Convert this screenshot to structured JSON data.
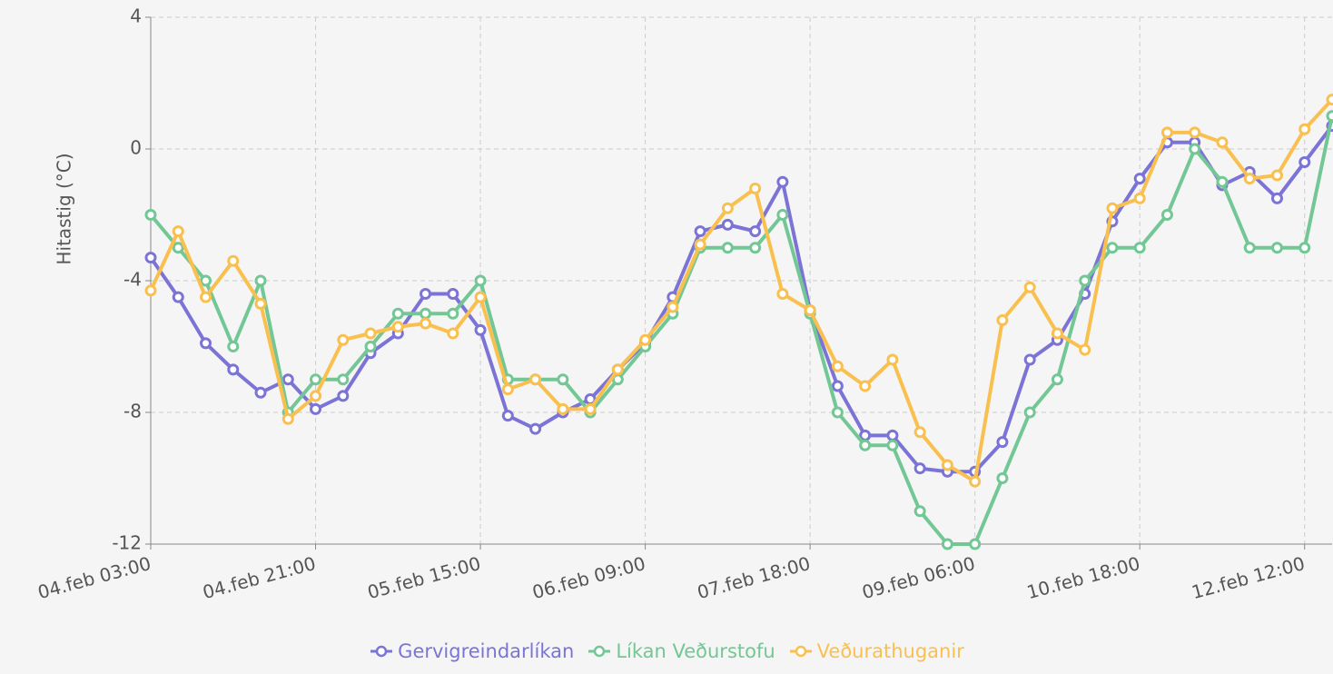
{
  "chart_data": {
    "type": "line",
    "ylabel": "Hitastig (°C)",
    "categories": [
      "04.feb 03:00",
      null,
      null,
      null,
      null,
      null,
      "04.feb 21:00",
      null,
      null,
      null,
      null,
      null,
      "05.feb 15:00",
      null,
      null,
      null,
      null,
      null,
      "06.feb 09:00",
      null,
      null,
      null,
      null,
      null,
      "07.feb 18:00",
      null,
      null,
      null,
      null,
      null,
      "09.feb 06:00",
      null,
      null,
      null,
      null,
      null,
      "10.feb 18:00",
      null,
      null,
      null,
      null,
      null,
      "12.feb 12:00",
      null
    ],
    "series": [
      {
        "name": "Gervigreindarlíkan",
        "color": "#7b74d6",
        "values": [
          -3.3,
          -4.5,
          -5.9,
          -6.7,
          -7.4,
          -7.0,
          -7.9,
          -7.5,
          -6.2,
          -5.6,
          -4.4,
          -4.4,
          -5.5,
          -8.1,
          -8.5,
          -8.0,
          -7.6,
          -6.7,
          -5.9,
          -4.5,
          -2.5,
          -2.3,
          -2.5,
          -1.0,
          -4.9,
          -7.2,
          -8.7,
          -8.7,
          -9.7,
          -9.8,
          -9.8,
          -8.9,
          -6.4,
          -5.8,
          -4.4,
          -2.2,
          -0.9,
          0.2,
          0.2,
          -1.1,
          -0.7,
          -1.5,
          -0.4,
          0.7
        ]
      },
      {
        "name": "Líkan Veðurstofu",
        "color": "#72c795",
        "values": [
          -2,
          -3,
          -4,
          -6,
          -4,
          -8,
          -7,
          -7,
          -6,
          -5,
          -5,
          -5,
          -4,
          -7,
          -7,
          -7,
          -8,
          -7,
          -6,
          -5,
          -3,
          -3,
          -3,
          -2,
          -5,
          -8,
          -9,
          -9,
          -11,
          -12,
          -12,
          -10,
          -8,
          -7,
          -4,
          -3,
          -3,
          -2,
          0,
          -1,
          -3,
          -3,
          -3,
          1
        ]
      },
      {
        "name": "Veðurathuganir",
        "color": "#f9c04f",
        "values": [
          -4.3,
          -2.5,
          -4.5,
          -3.4,
          -4.7,
          -8.2,
          -7.5,
          -5.8,
          -5.6,
          -5.4,
          -5.3,
          -5.6,
          -4.5,
          -7.3,
          -7.0,
          -7.9,
          -7.9,
          -6.7,
          -5.8,
          -4.8,
          -2.9,
          -1.8,
          -1.2,
          -4.4,
          -4.9,
          -6.6,
          -7.2,
          -6.4,
          -8.6,
          -9.6,
          -10.1,
          -5.2,
          -4.2,
          -5.6,
          -6.1,
          -1.8,
          -1.5,
          0.5,
          0.5,
          0.2,
          -0.9,
          -0.8,
          0.6,
          1.5
        ]
      }
    ],
    "ylim": [
      -12,
      4
    ],
    "yticks": [
      4,
      0,
      -4,
      -8,
      -12
    ],
    "grid": true
  }
}
